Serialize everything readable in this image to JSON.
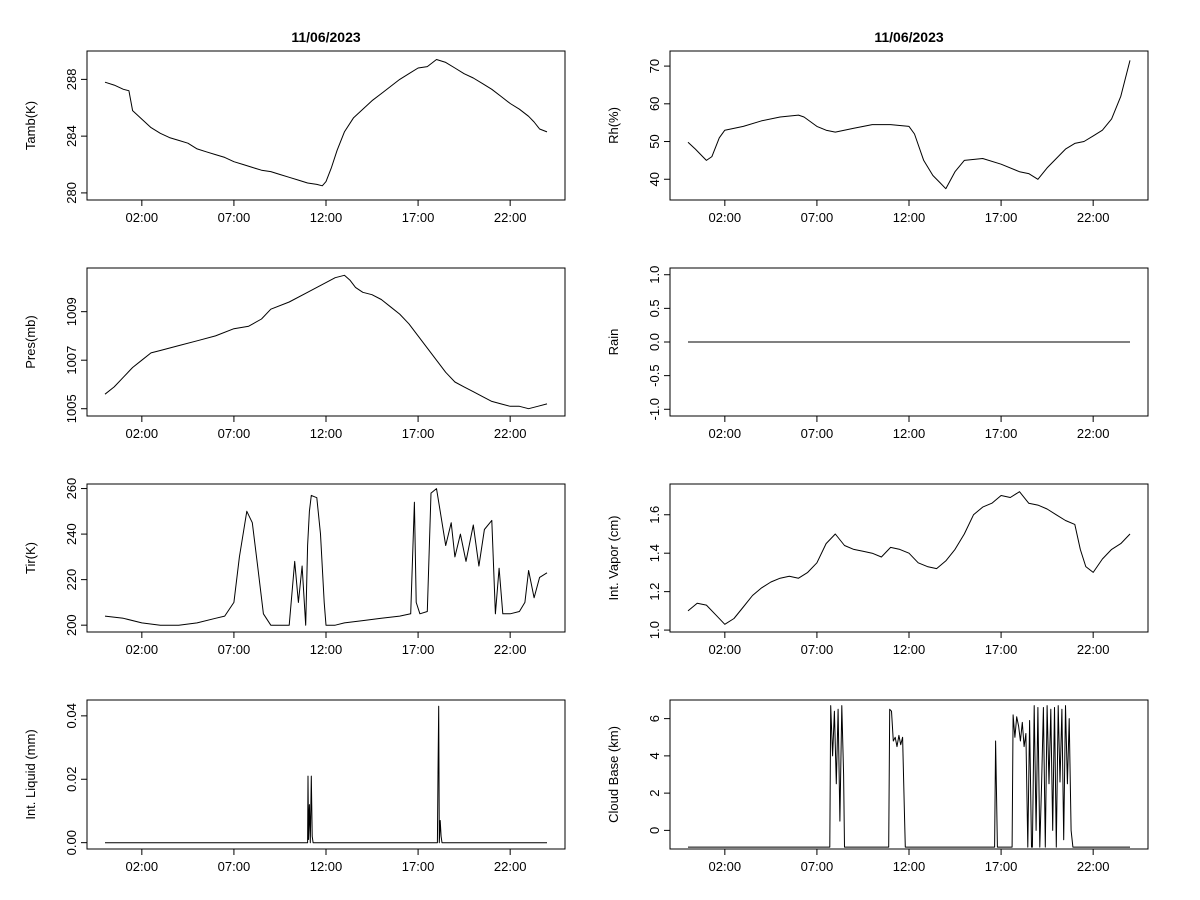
{
  "chart_data": [
    {
      "type": "line",
      "title": "11/06/2023",
      "xlabel": "",
      "ylabel": "Tamb(K)",
      "xlim": [
        0,
        24
      ],
      "ylim": [
        279.5,
        290
      ],
      "x_ticks": [
        2,
        7,
        12,
        17,
        22
      ],
      "x_tick_labels": [
        "02:00",
        "07:00",
        "12:00",
        "17:00",
        "22:00"
      ],
      "y_ticks": [
        280,
        284,
        288
      ],
      "y_tick_labels": [
        "280",
        "284",
        "288"
      ],
      "grid": false,
      "series": [
        {
          "x": [
            0,
            0.5,
            1,
            1.3,
            1.5,
            2,
            2.5,
            3,
            3.5,
            4,
            4.5,
            5,
            5.5,
            6,
            6.5,
            7,
            7.5,
            8,
            8.5,
            9,
            9.5,
            10,
            10.5,
            11,
            11.5,
            11.8,
            12,
            12.3,
            12.6,
            13,
            13.5,
            14,
            14.5,
            15,
            15.5,
            16,
            16.5,
            17,
            17.5,
            17.8,
            18,
            18.5,
            19,
            19.5,
            20,
            20.5,
            21,
            21.5,
            22,
            22.5,
            23,
            23.3,
            23.6,
            24
          ],
          "y": [
            287.8,
            287.6,
            287.3,
            287.2,
            285.8,
            285.2,
            284.6,
            284.2,
            283.9,
            283.7,
            283.5,
            283.1,
            282.9,
            282.7,
            282.5,
            282.2,
            282.0,
            281.8,
            281.6,
            281.5,
            281.3,
            281.1,
            280.9,
            280.7,
            280.6,
            280.5,
            280.8,
            281.8,
            283.0,
            284.3,
            285.3,
            285.9,
            286.5,
            287.0,
            287.5,
            288.0,
            288.4,
            288.8,
            288.9,
            289.2,
            289.4,
            289.2,
            288.8,
            288.4,
            288.1,
            287.7,
            287.3,
            286.8,
            286.3,
            285.9,
            285.4,
            285.0,
            284.5,
            284.3
          ]
        }
      ]
    },
    {
      "type": "line",
      "title": "11/06/2023",
      "xlabel": "",
      "ylabel": "Rh(%)",
      "xlim": [
        0,
        24
      ],
      "ylim": [
        34.5,
        74
      ],
      "x_ticks": [
        2,
        7,
        12,
        17,
        22
      ],
      "x_tick_labels": [
        "02:00",
        "07:00",
        "12:00",
        "17:00",
        "22:00"
      ],
      "y_ticks": [
        40,
        50,
        60,
        70
      ],
      "y_tick_labels": [
        "40",
        "50",
        "60",
        "70"
      ],
      "grid": false,
      "series": [
        {
          "x": [
            0,
            0.4,
            0.8,
            1.0,
            1.3,
            1.7,
            2,
            3,
            4,
            5,
            6,
            6.3,
            7,
            7.5,
            8,
            9,
            10,
            11,
            12,
            12.3,
            12.8,
            13.3,
            13.7,
            14,
            14.5,
            15,
            16,
            17,
            18,
            18.5,
            19,
            19.5,
            20,
            20.5,
            21,
            21.5,
            22,
            22.5,
            23,
            23.5,
            24
          ],
          "y": [
            49.8,
            48,
            46,
            45,
            46,
            51,
            53,
            54,
            55.5,
            56.5,
            57,
            56.5,
            54,
            53,
            52.5,
            53.5,
            54.5,
            54.5,
            54,
            52,
            45,
            41,
            39,
            37.5,
            42,
            45,
            45.5,
            44,
            42,
            41.5,
            40,
            43,
            45.5,
            48,
            49.5,
            50,
            51.5,
            53,
            56,
            62,
            71.5
          ]
        }
      ]
    },
    {
      "type": "line",
      "title": "",
      "xlabel": "",
      "ylabel": "Pres(mb)",
      "xlim": [
        0,
        24
      ],
      "ylim": [
        1004.7,
        1010.8
      ],
      "x_ticks": [
        2,
        7,
        12,
        17,
        22
      ],
      "x_tick_labels": [
        "02:00",
        "07:00",
        "12:00",
        "17:00",
        "22:00"
      ],
      "y_ticks": [
        1005,
        1007,
        1009
      ],
      "y_tick_labels": [
        "1005",
        "1007",
        "1009"
      ],
      "grid": false,
      "series": [
        {
          "x": [
            0,
            0.5,
            1,
            1.5,
            2,
            2.5,
            3,
            4,
            5,
            6,
            7,
            7.8,
            8.5,
            9,
            10,
            11,
            12,
            12.5,
            13,
            13.3,
            13.6,
            14,
            14.5,
            15,
            15.5,
            16,
            16.5,
            17,
            17.5,
            18,
            18.5,
            19,
            19.5,
            20,
            20.5,
            21,
            21.5,
            22,
            22.5,
            23,
            23.5,
            24
          ],
          "y": [
            1005.6,
            1005.9,
            1006.3,
            1006.7,
            1007.0,
            1007.3,
            1007.4,
            1007.6,
            1007.8,
            1008.0,
            1008.3,
            1008.4,
            1008.7,
            1009.1,
            1009.4,
            1009.8,
            1010.2,
            1010.4,
            1010.5,
            1010.3,
            1010.0,
            1009.8,
            1009.7,
            1009.5,
            1009.2,
            1008.9,
            1008.5,
            1008.0,
            1007.5,
            1007.0,
            1006.5,
            1006.1,
            1005.9,
            1005.7,
            1005.5,
            1005.3,
            1005.2,
            1005.1,
            1005.1,
            1005.0,
            1005.1,
            1005.2
          ]
        }
      ]
    },
    {
      "type": "line",
      "title": "",
      "xlabel": "",
      "ylabel": "Rain",
      "xlim": [
        0,
        24
      ],
      "ylim": [
        -1.1,
        1.1
      ],
      "x_ticks": [
        2,
        7,
        12,
        17,
        22
      ],
      "x_tick_labels": [
        "02:00",
        "07:00",
        "12:00",
        "17:00",
        "22:00"
      ],
      "y_ticks": [
        -1.0,
        -0.5,
        0.0,
        0.5,
        1.0
      ],
      "y_tick_labels": [
        "-1.0",
        "-0.5",
        "0.0",
        "0.5",
        "1.0"
      ],
      "grid": false,
      "series": [
        {
          "x": [
            0,
            24
          ],
          "y": [
            0,
            0
          ]
        }
      ]
    },
    {
      "type": "line",
      "title": "",
      "xlabel": "",
      "ylabel": "Tir(K)",
      "xlim": [
        0,
        24
      ],
      "ylim": [
        197,
        262
      ],
      "x_ticks": [
        2,
        7,
        12,
        17,
        22
      ],
      "x_tick_labels": [
        "02:00",
        "07:00",
        "12:00",
        "17:00",
        "22:00"
      ],
      "y_ticks": [
        200,
        220,
        240,
        260
      ],
      "y_tick_labels": [
        "200",
        "220",
        "240",
        "260"
      ],
      "grid": false,
      "series": [
        {
          "x": [
            0,
            1,
            2,
            3,
            4,
            5,
            6,
            6.5,
            7,
            7.3,
            7.7,
            8.0,
            8.3,
            8.6,
            9,
            9.2,
            9.5,
            10,
            10.3,
            10.5,
            10.7,
            10.9,
            11.0,
            11.1,
            11.2,
            11.5,
            11.7,
            11.9,
            12,
            12.5,
            13,
            14,
            15,
            16,
            16.6,
            16.8,
            16.9,
            17.1,
            17.5,
            17.7,
            18.0,
            18.2,
            18.5,
            18.8,
            19,
            19.3,
            19.6,
            20,
            20.3,
            20.6,
            21,
            21.2,
            21.4,
            21.6,
            22,
            22.5,
            22.8,
            23,
            23.3,
            23.6,
            24
          ],
          "y": [
            204,
            203,
            201,
            200,
            200,
            201,
            203,
            204,
            210,
            230,
            250,
            245,
            225,
            205,
            200,
            200,
            200,
            200,
            228,
            210,
            226,
            200,
            235,
            250,
            257,
            256,
            240,
            210,
            200,
            200,
            201,
            202,
            203,
            204,
            205,
            254,
            210,
            205,
            206,
            258,
            260,
            250,
            235,
            245,
            230,
            240,
            228,
            244,
            226,
            242,
            246,
            205,
            225,
            205,
            205,
            206,
            210,
            224,
            212,
            221,
            223
          ]
        }
      ]
    },
    {
      "type": "line",
      "title": "",
      "xlabel": "",
      "ylabel": "Int. Vapor (cm)",
      "xlim": [
        0,
        24
      ],
      "ylim": [
        0.99,
        1.76
      ],
      "x_ticks": [
        2,
        7,
        12,
        17,
        22
      ],
      "x_tick_labels": [
        "02:00",
        "07:00",
        "12:00",
        "17:00",
        "22:00"
      ],
      "y_ticks": [
        1.0,
        1.2,
        1.4,
        1.6
      ],
      "y_tick_labels": [
        "1.0",
        "1.2",
        "1.4",
        "1.6"
      ],
      "grid": false,
      "series": [
        {
          "x": [
            0,
            0.5,
            1,
            1.5,
            2,
            2.5,
            3,
            3.5,
            4,
            4.5,
            5,
            5.5,
            6,
            6.5,
            7,
            7.5,
            8,
            8.5,
            9,
            9.5,
            10,
            10.5,
            11,
            11.5,
            12,
            12.5,
            13,
            13.5,
            14,
            14.5,
            15,
            15.5,
            16,
            16.5,
            17,
            17.5,
            18,
            18.5,
            19,
            19.5,
            20,
            20.5,
            21,
            21.3,
            21.6,
            22,
            22.5,
            23,
            23.5,
            24
          ],
          "y": [
            1.1,
            1.14,
            1.13,
            1.08,
            1.03,
            1.06,
            1.12,
            1.18,
            1.22,
            1.25,
            1.27,
            1.28,
            1.27,
            1.3,
            1.35,
            1.45,
            1.5,
            1.44,
            1.42,
            1.41,
            1.4,
            1.38,
            1.43,
            1.42,
            1.4,
            1.35,
            1.33,
            1.32,
            1.36,
            1.42,
            1.5,
            1.6,
            1.64,
            1.66,
            1.7,
            1.69,
            1.72,
            1.66,
            1.65,
            1.63,
            1.6,
            1.57,
            1.55,
            1.42,
            1.33,
            1.3,
            1.37,
            1.42,
            1.45,
            1.5
          ]
        }
      ]
    },
    {
      "type": "line",
      "title": "",
      "xlabel": "",
      "ylabel": "Int. Liquid (mm)",
      "xlim": [
        0,
        24
      ],
      "ylim": [
        -0.002,
        0.045
      ],
      "x_ticks": [
        2,
        7,
        12,
        17,
        22
      ],
      "x_tick_labels": [
        "02:00",
        "07:00",
        "12:00",
        "17:00",
        "22:00"
      ],
      "y_ticks": [
        0.0,
        0.02,
        0.04
      ],
      "y_tick_labels": [
        "0.00",
        "0.02",
        "0.04"
      ],
      "grid": false,
      "series": [
        {
          "x": [
            0,
            11.0,
            11.02,
            11.05,
            11.1,
            11.15,
            11.2,
            11.25,
            11.3,
            11.35,
            18.05,
            18.08,
            18.12,
            18.15,
            18.2,
            18.25,
            18.3,
            24
          ],
          "y": [
            0,
            0,
            0.021,
            0.001,
            0.012,
            0.0,
            0.021,
            0.002,
            0.0,
            0,
            0,
            0.022,
            0.043,
            0.0,
            0.007,
            0.002,
            0.0,
            0
          ]
        }
      ]
    },
    {
      "type": "line",
      "title": "",
      "xlabel": "",
      "ylabel": "Cloud Base (km)",
      "xlim": [
        0,
        24
      ],
      "ylim": [
        -1.0,
        7.0
      ],
      "x_ticks": [
        2,
        7,
        12,
        17,
        22
      ],
      "x_tick_labels": [
        "02:00",
        "07:00",
        "12:00",
        "17:00",
        "22:00"
      ],
      "y_ticks": [
        0,
        2,
        4,
        6
      ],
      "y_tick_labels": [
        "0",
        "2",
        "4",
        "6"
      ],
      "grid": false,
      "series": [
        {
          "x": [
            0,
            7.7,
            7.75,
            7.85,
            7.95,
            8.05,
            8.15,
            8.25,
            8.35,
            8.45,
            8.5,
            10.9,
            10.95,
            11.05,
            11.15,
            11.25,
            11.35,
            11.45,
            11.55,
            11.65,
            11.75,
            11.8,
            16.65,
            16.7,
            16.75,
            16.8,
            17.6,
            17.65,
            17.75,
            17.85,
            17.95,
            18.05,
            18.15,
            18.25,
            18.35,
            18.45,
            18.55,
            18.65,
            18.7,
            18.8,
            18.9,
            19.0,
            19.1,
            19.2,
            19.3,
            19.4,
            19.5,
            19.6,
            19.7,
            19.8,
            19.9,
            20.0,
            20.1,
            20.2,
            20.3,
            20.4,
            20.5,
            20.6,
            20.7,
            20.8,
            20.9,
            24
          ],
          "y": [
            -0.9,
            -0.9,
            6.7,
            4.0,
            6.4,
            2.5,
            6.5,
            0.5,
            6.7,
            3.0,
            -0.9,
            -0.9,
            6.5,
            6.4,
            4.8,
            5.0,
            4.5,
            5.1,
            4.6,
            5.0,
            1.0,
            -0.9,
            -0.9,
            4.8,
            2.0,
            -0.9,
            -0.9,
            6.2,
            5.0,
            6.1,
            5.6,
            4.8,
            5.8,
            4.5,
            5.2,
            -0.9,
            5.9,
            -0.9,
            -0.9,
            6.7,
            0.0,
            6.6,
            -0.9,
            2.5,
            6.6,
            -0.9,
            6.7,
            2.5,
            6.5,
            0.0,
            6.6,
            -0.9,
            6.7,
            2.6,
            6.5,
            -0.5,
            6.7,
            2.5,
            6.0,
            0.0,
            -0.9,
            -0.9
          ]
        }
      ]
    }
  ]
}
